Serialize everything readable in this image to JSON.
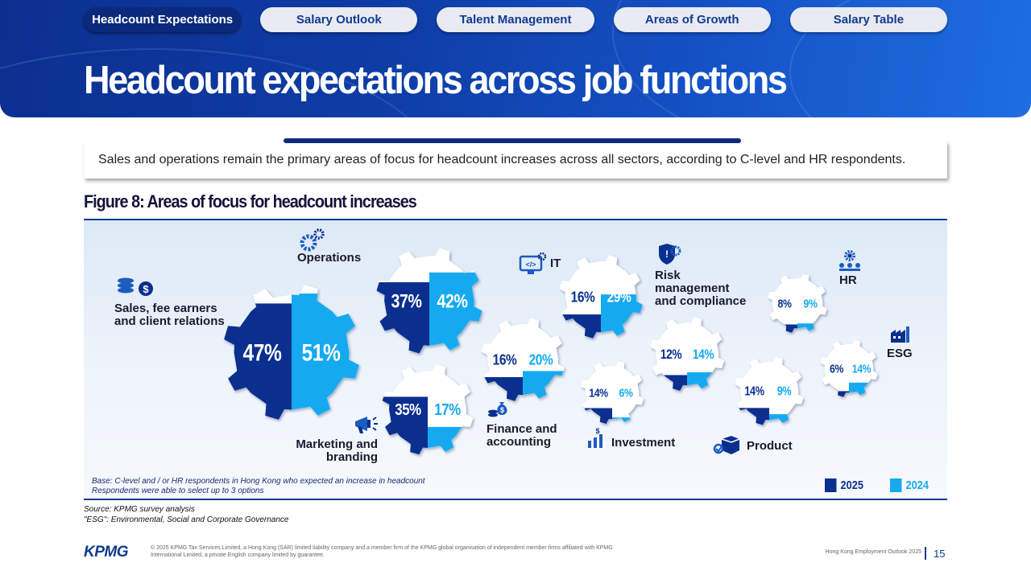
{
  "nav": {
    "tabs": [
      {
        "label": "Headcount Expectations",
        "active": true
      },
      {
        "label": "Salary Outlook",
        "active": false
      },
      {
        "label": "Talent Management",
        "active": false
      },
      {
        "label": "Areas of Growth",
        "active": false
      },
      {
        "label": "Salary Table",
        "active": false
      }
    ]
  },
  "page": {
    "title": "Headcount expectations across job functions",
    "summary": "Sales and operations remain the primary areas of focus for headcount increases across all sectors, according to C-level and HR respondents."
  },
  "figure": {
    "title": "Figure 8: Areas of focus for headcount increases",
    "base_line1": "Base: C-level and / or HR respondents in Hong Kong who expected an increase in headcount",
    "base_line2": "Respondents were able to select up to 3 options",
    "legend": {
      "y2025": "2025",
      "y2024": "2024"
    },
    "colors": {
      "2025": "#0b2f8f",
      "2024": "#15aaf0",
      "empty": "#ffffff"
    }
  },
  "chart_data": {
    "type": "bar",
    "title": "Figure 8: Areas of focus for headcount increases",
    "unit": "%",
    "series_names": [
      "2025",
      "2024"
    ],
    "categories": [
      {
        "label": "Sales, fee earners and client relations",
        "label_lines": [
          "Sales, fee earners",
          "and client relations"
        ],
        "icon": "coins-dollar-icon",
        "v2025": 47,
        "v2024": 51
      },
      {
        "label": "Operations",
        "label_lines": [
          "Operations"
        ],
        "icon": "gears-person-icon",
        "v2025": 37,
        "v2024": 42
      },
      {
        "label": "Marketing and branding",
        "label_lines": [
          "Marketing and",
          "branding"
        ],
        "icon": "megaphone-icon",
        "v2025": 35,
        "v2024": 17
      },
      {
        "label": "Finance and accounting",
        "label_lines": [
          "Finance and",
          "accounting"
        ],
        "icon": "money-bag-icon",
        "v2025": 16,
        "v2024": 20
      },
      {
        "label": "IT",
        "label_lines": [
          "IT"
        ],
        "icon": "monitor-code-icon",
        "v2025": 16,
        "v2024": 29
      },
      {
        "label": "Investment",
        "label_lines": [
          "Investment"
        ],
        "icon": "growth-chart-icon",
        "v2025": 14,
        "v2024": 6
      },
      {
        "label": "Risk management and compliance",
        "label_lines": [
          "Risk",
          "management",
          "and compliance"
        ],
        "icon": "shield-gear-icon",
        "v2025": 12,
        "v2024": 14
      },
      {
        "label": "Product",
        "label_lines": [
          "Product"
        ],
        "icon": "box-icon",
        "v2025": 14,
        "v2024": 9
      },
      {
        "label": "HR",
        "label_lines": [
          "HR"
        ],
        "icon": "people-icon",
        "v2025": 8,
        "v2024": 9
      },
      {
        "label": "ESG",
        "label_lines": [
          "ESG"
        ],
        "icon": "factory-icon",
        "v2025": 6,
        "v2024": 14
      }
    ],
    "legend_position": "bottom-right"
  },
  "source": {
    "line1": "Source: KPMG survey analysis",
    "line2": "\"ESG\": Environmental, Social and Corporate Governance"
  },
  "footer": {
    "logo": "KPMG",
    "legal": "© 2025 KPMG Tax Services Limited, a Hong Kong (SAR) limited liability company and a member firm of the KPMG global organisation of independent member firms affiliated with KPMG International Limited, a private English company limited by guarantee.",
    "publication": "Hong Kong Employment Outlook 2025",
    "page_number": "15"
  }
}
